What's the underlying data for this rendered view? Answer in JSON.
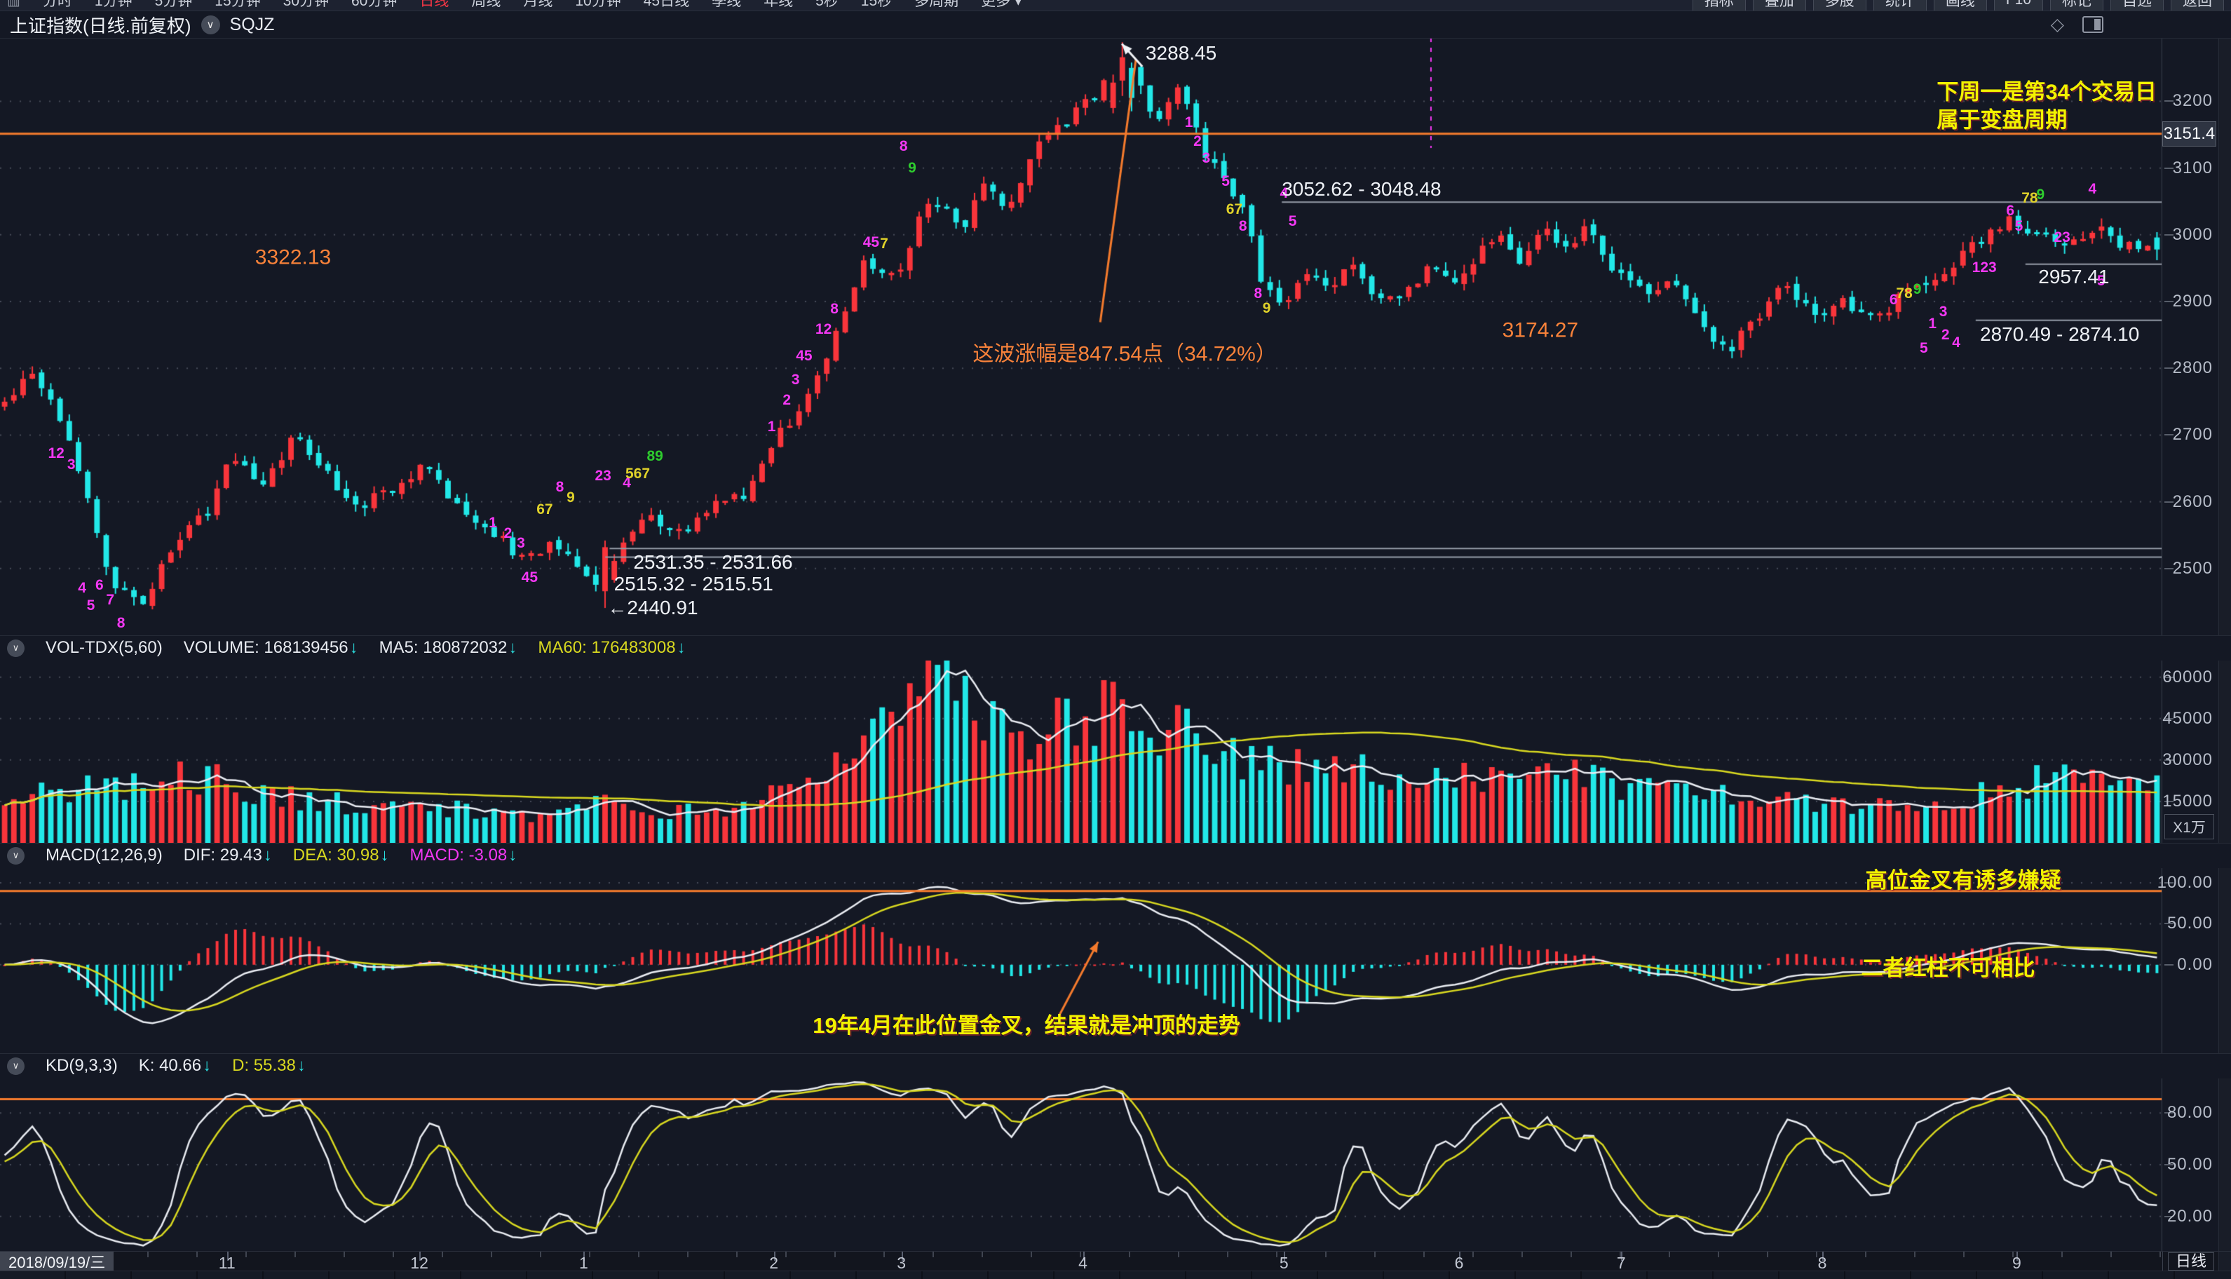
{
  "topbar": {
    "periods": [
      "分时",
      "1分钟",
      "5分钟",
      "15分钟",
      "30分钟",
      "60分钟",
      "日线",
      "周线",
      "月线",
      "10分钟",
      "45日线",
      "季线",
      "年线",
      "5秒",
      "15秒",
      "多周期"
    ],
    "active_period": "日线",
    "more_label": "更多",
    "right_buttons": [
      "指标",
      "叠加",
      "多股",
      "统计",
      "画线",
      "F10",
      "标记",
      "自选",
      "返回"
    ]
  },
  "glyphs": {
    "down_arrow": "↓",
    "dropdown": "▾",
    "chevron": "∨",
    "diamond": "◇"
  },
  "title": {
    "name": "上证指数(日线.前复权)",
    "code": "SQJZ"
  },
  "colors": {
    "up": "#f9353b",
    "down": "#22e8e8",
    "orange": "#f57b2d",
    "yellow": "#f2f200",
    "white": "#eef1f6",
    "gray_line": "#969ca8",
    "grid": "rgba(190,196,210,0.30)",
    "ma5": "#e9ecf2",
    "ma60": "#d8d820",
    "dif": "#e9ecf2",
    "dea": "#d8d820",
    "magenta": "#f438f4",
    "green": "#2ecc2e",
    "marker_yellow": "#e0d22a",
    "purple": "#a86ef5"
  },
  "chart_data": {
    "type": "candlestick",
    "title": "上证指数(日线.前复权)",
    "timeframe": "日线",
    "x_axis": {
      "start_label": "2018/09/19/三",
      "right_label": "日线",
      "months": [
        [
          "11",
          10.5
        ],
        [
          "12",
          19.4
        ],
        [
          "1",
          27.0
        ],
        [
          "2",
          35.8
        ],
        [
          "3",
          41.7
        ],
        [
          "4",
          50.1
        ],
        [
          "5",
          59.4
        ],
        [
          "6",
          67.5
        ],
        [
          "7",
          75.0
        ],
        [
          "8",
          84.3
        ],
        [
          "9",
          93.3
        ]
      ]
    },
    "price_axis": {
      "ticks": [
        3200,
        3100,
        3000,
        2900,
        2800,
        2700,
        2600,
        2500
      ],
      "range": [
        2400,
        3295
      ],
      "marked_price": "3151.4",
      "marked_price_value": 3151.4
    },
    "hline_orange": {
      "price": 3151.4
    },
    "hlines_gray": [
      {
        "price": 3049,
        "x1_pct": 59.3,
        "x2_pct": 100
      },
      {
        "price": 2956,
        "x1_pct": 93.7,
        "x2_pct": 100
      },
      {
        "price": 2872,
        "x1_pct": 91.4,
        "x2_pct": 100
      },
      {
        "price": 2530,
        "x1_pct": 28.2,
        "x2_pct": 100
      },
      {
        "price": 2517,
        "x1_pct": 28.0,
        "x2_pct": 100
      }
    ],
    "trend_line": {
      "x1_pct": 50.9,
      "p1": 2869,
      "x2_pct": 52.55,
      "p2": 3263
    },
    "peak_arrow": {
      "tip_x_pct": 51.9,
      "tip_price": 3286,
      "tail_x_pct": 52.85,
      "tail_price": 3252
    },
    "vline_dashed": {
      "x_pct": 66.2,
      "p1": 3295,
      "p2": 3130
    },
    "annotations": [
      {
        "text": "3288.45",
        "x_pct": 53.0,
        "price": 3272,
        "style": "white"
      },
      {
        "text": "下周一是第34个交易日\n属于变盘周期",
        "x_pct": 89.6,
        "price": 3192,
        "style": "yellow"
      },
      {
        "text": "3052.62 - 3048.48",
        "x_pct": 59.3,
        "price": 3068,
        "style": "white"
      },
      {
        "text": "3322.13",
        "x_pct": 11.8,
        "price": 2966,
        "style": "orange"
      },
      {
        "text": "这波涨幅是847.54点（34.72%）",
        "x_pct": 45.0,
        "price": 2821,
        "style": "orange"
      },
      {
        "text": "3174.27",
        "x_pct": 69.5,
        "price": 2857,
        "style": "orange"
      },
      {
        "text": "2957.41",
        "x_pct": 94.3,
        "price": 2937,
        "style": "white"
      },
      {
        "text": "2870.49 - 2874.10",
        "x_pct": 91.6,
        "price": 2851,
        "style": "white"
      },
      {
        "text": "2531.35 - 2531.66",
        "x_pct": 29.3,
        "price": 2509,
        "style": "white"
      },
      {
        "text": "2515.32 - 2515.51",
        "x_pct": 28.4,
        "price": 2477,
        "style": "white"
      },
      {
        "text": "←2440.91",
        "x_pct": 28.1,
        "price": 2441,
        "style": "white"
      }
    ],
    "sequence_markers": [
      [
        "12",
        2.6,
        2672,
        "m"
      ],
      [
        "3",
        3.3,
        2655,
        "m"
      ],
      [
        "4",
        3.8,
        2470,
        "m"
      ],
      [
        "6",
        4.6,
        2475,
        "m"
      ],
      [
        "5",
        4.2,
        2444,
        "m"
      ],
      [
        "7",
        5.1,
        2452,
        "m"
      ],
      [
        "8",
        5.6,
        2418,
        "m"
      ],
      [
        "1",
        22.8,
        2568,
        "m"
      ],
      [
        "2",
        23.5,
        2552,
        "m"
      ],
      [
        "3",
        24.1,
        2538,
        "m"
      ],
      [
        "45",
        24.5,
        2486,
        "m"
      ],
      [
        "67",
        25.2,
        2588,
        "y"
      ],
      [
        "8",
        25.9,
        2622,
        "m"
      ],
      [
        "9",
        26.4,
        2606,
        "y"
      ],
      [
        "23",
        27.9,
        2638,
        "m"
      ],
      [
        "4",
        29.0,
        2628,
        "m"
      ],
      [
        "567",
        29.5,
        2642,
        "y"
      ],
      [
        "89",
        30.3,
        2668,
        "g"
      ],
      [
        "1",
        35.7,
        2712,
        "m"
      ],
      [
        "2",
        36.4,
        2752,
        "m"
      ],
      [
        "3",
        36.8,
        2782,
        "m"
      ],
      [
        "45",
        37.2,
        2818,
        "m"
      ],
      [
        "12",
        38.1,
        2858,
        "m"
      ],
      [
        "8",
        38.6,
        2888,
        "m"
      ],
      [
        "45",
        40.3,
        2988,
        "m"
      ],
      [
        "7",
        40.9,
        2986,
        "y"
      ],
      [
        "8",
        41.8,
        3132,
        "m"
      ],
      [
        "9",
        42.2,
        3100,
        "g"
      ],
      [
        "1",
        55.0,
        3168,
        "m"
      ],
      [
        "2",
        55.4,
        3140,
        "m"
      ],
      [
        "3",
        55.8,
        3114,
        "m"
      ],
      [
        "5",
        56.7,
        3080,
        "m"
      ],
      [
        "67",
        57.1,
        3038,
        "y"
      ],
      [
        "8",
        57.5,
        3012,
        "m"
      ],
      [
        "8",
        58.2,
        2912,
        "m"
      ],
      [
        "9",
        58.6,
        2890,
        "y"
      ],
      [
        "4",
        59.4,
        3062,
        "m"
      ],
      [
        "5",
        59.8,
        3020,
        "m"
      ],
      [
        "6",
        87.6,
        2902,
        "m"
      ],
      [
        "78",
        88.1,
        2912,
        "y"
      ],
      [
        "9",
        88.7,
        2918,
        "g"
      ],
      [
        "5",
        89.0,
        2830,
        "m"
      ],
      [
        "1",
        89.4,
        2866,
        "m"
      ],
      [
        "2",
        90.0,
        2850,
        "m"
      ],
      [
        "3",
        89.9,
        2884,
        "m"
      ],
      [
        "4",
        90.5,
        2838,
        "m"
      ],
      [
        "123",
        91.8,
        2950,
        "m"
      ],
      [
        "5",
        93.4,
        3012,
        "m"
      ],
      [
        "6",
        93.0,
        3036,
        "m"
      ],
      [
        "78",
        93.9,
        3054,
        "y"
      ],
      [
        "9",
        94.4,
        3060,
        "g"
      ],
      [
        "23",
        95.4,
        2996,
        "m"
      ],
      [
        "4",
        96.8,
        3068,
        "m"
      ],
      [
        "5",
        97.2,
        2930,
        "m"
      ]
    ],
    "price_anchors": [
      [
        0.0,
        2745
      ],
      [
        0.012,
        2800
      ],
      [
        0.03,
        2700
      ],
      [
        0.05,
        2480
      ],
      [
        0.065,
        2450
      ],
      [
        0.08,
        2540
      ],
      [
        0.095,
        2590
      ],
      [
        0.105,
        2665
      ],
      [
        0.12,
        2625
      ],
      [
        0.135,
        2700
      ],
      [
        0.15,
        2640
      ],
      [
        0.165,
        2590
      ],
      [
        0.18,
        2625
      ],
      [
        0.195,
        2655
      ],
      [
        0.21,
        2590
      ],
      [
        0.225,
        2560
      ],
      [
        0.24,
        2515
      ],
      [
        0.255,
        2535
      ],
      [
        0.268,
        2500
      ],
      [
        0.277,
        2465
      ],
      [
        0.285,
        2530
      ],
      [
        0.3,
        2580
      ],
      [
        0.315,
        2555
      ],
      [
        0.33,
        2595
      ],
      [
        0.345,
        2615
      ],
      [
        0.36,
        2700
      ],
      [
        0.375,
        2760
      ],
      [
        0.39,
        2880
      ],
      [
        0.4,
        2960
      ],
      [
        0.415,
        2940
      ],
      [
        0.43,
        3060
      ],
      [
        0.445,
        3010
      ],
      [
        0.455,
        3080
      ],
      [
        0.465,
        3040
      ],
      [
        0.48,
        3130
      ],
      [
        0.495,
        3175
      ],
      [
        0.51,
        3220
      ],
      [
        0.52,
        3275
      ],
      [
        0.528,
        3220
      ],
      [
        0.535,
        3170
      ],
      [
        0.545,
        3230
      ],
      [
        0.555,
        3140
      ],
      [
        0.565,
        3085
      ],
      [
        0.575,
        3050
      ],
      [
        0.585,
        2920
      ],
      [
        0.595,
        2900
      ],
      [
        0.605,
        2950
      ],
      [
        0.615,
        2910
      ],
      [
        0.625,
        2960
      ],
      [
        0.635,
        2920
      ],
      [
        0.645,
        2900
      ],
      [
        0.655,
        2930
      ],
      [
        0.665,
        2960
      ],
      [
        0.675,
        2915
      ],
      [
        0.685,
        2980
      ],
      [
        0.695,
        3000
      ],
      [
        0.705,
        2955
      ],
      [
        0.715,
        3010
      ],
      [
        0.725,
        2975
      ],
      [
        0.735,
        3020
      ],
      [
        0.745,
        2960
      ],
      [
        0.755,
        2930
      ],
      [
        0.765,
        2900
      ],
      [
        0.775,
        2935
      ],
      [
        0.785,
        2880
      ],
      [
        0.8,
        2820
      ],
      [
        0.815,
        2880
      ],
      [
        0.825,
        2930
      ],
      [
        0.84,
        2885
      ],
      [
        0.855,
        2900
      ],
      [
        0.87,
        2870
      ],
      [
        0.885,
        2920
      ],
      [
        0.9,
        2935
      ],
      [
        0.915,
        2985
      ],
      [
        0.93,
        3025
      ],
      [
        0.945,
        3000
      ],
      [
        0.96,
        2985
      ],
      [
        0.975,
        3005
      ],
      [
        0.99,
        2975
      ],
      [
        1.0,
        2980
      ]
    ],
    "volume": {
      "name": "VOL-TDX(5,60)",
      "volume_label": "VOLUME:",
      "volume": "168139456",
      "ma5_label": "MA5:",
      "ma5": "180872032",
      "ma60_label": "MA60:",
      "ma60": "176483008",
      "axis_ticks": [
        "60000",
        "45000",
        "30000",
        "15000"
      ],
      "axis_values": [
        60000,
        45000,
        30000,
        15000
      ],
      "unit": "X1万",
      "max": 66000,
      "anchors": [
        [
          0,
          16000
        ],
        [
          0.05,
          20000
        ],
        [
          0.09,
          24000
        ],
        [
          0.13,
          17000
        ],
        [
          0.17,
          13000
        ],
        [
          0.21,
          12000
        ],
        [
          0.25,
          10000
        ],
        [
          0.28,
          14000
        ],
        [
          0.31,
          11000
        ],
        [
          0.34,
          12000
        ],
        [
          0.37,
          20000
        ],
        [
          0.39,
          30000
        ],
        [
          0.41,
          55000
        ],
        [
          0.43,
          60000
        ],
        [
          0.45,
          48000
        ],
        [
          0.47,
          40000
        ],
        [
          0.49,
          42000
        ],
        [
          0.51,
          50000
        ],
        [
          0.53,
          46000
        ],
        [
          0.55,
          38000
        ],
        [
          0.57,
          30000
        ],
        [
          0.59,
          28000
        ],
        [
          0.61,
          30000
        ],
        [
          0.64,
          24000
        ],
        [
          0.67,
          26000
        ],
        [
          0.7,
          21000
        ],
        [
          0.73,
          24000
        ],
        [
          0.76,
          19000
        ],
        [
          0.79,
          17000
        ],
        [
          0.82,
          15000
        ],
        [
          0.85,
          13500
        ],
        [
          0.88,
          15000
        ],
        [
          0.91,
          16000
        ],
        [
          0.94,
          22000
        ],
        [
          0.97,
          25000
        ],
        [
          1,
          20000
        ]
      ]
    },
    "macd": {
      "name": "MACD(12,26,9)",
      "dif_label": "DIF:",
      "dif": "29.43",
      "dea_label": "DEA:",
      "dea": "30.98",
      "macd_label": "MACD:",
      "macd": "-3.08",
      "axis_ticks": [
        "100.00",
        "50.00",
        "0.00"
      ],
      "axis_values": [
        100,
        50,
        0
      ],
      "range": [
        -108,
        118
      ],
      "hline_orange": {
        "value": 90
      },
      "arrow": {
        "x1_pct": 49.0,
        "v1": -62,
        "x2_pct": 50.8,
        "v2": 28
      },
      "annotations": [
        {
          "text": "高位金叉有诱多嫌疑",
          "x_pct": 86.3,
          "value": 103,
          "style": "yellow"
        },
        {
          "text": "二者红柱不可相比",
          "x_pct": 86.1,
          "value": -4,
          "style": "yellow"
        },
        {
          "text": "19年4月在此位置金叉，结果就是冲顶的走势",
          "x_pct": 37.6,
          "value": -75,
          "style": "yellow"
        }
      ]
    },
    "kd": {
      "name": "KD(9,3,3)",
      "k_label": "K:",
      "k": "40.66",
      "d_label": "D:",
      "d": "55.38",
      "axis_ticks": [
        "80.00",
        "50.00",
        "20.00"
      ],
      "axis_values": [
        80,
        50,
        20
      ],
      "range": [
        0,
        100
      ],
      "hline_orange": {
        "value": 88
      }
    }
  }
}
